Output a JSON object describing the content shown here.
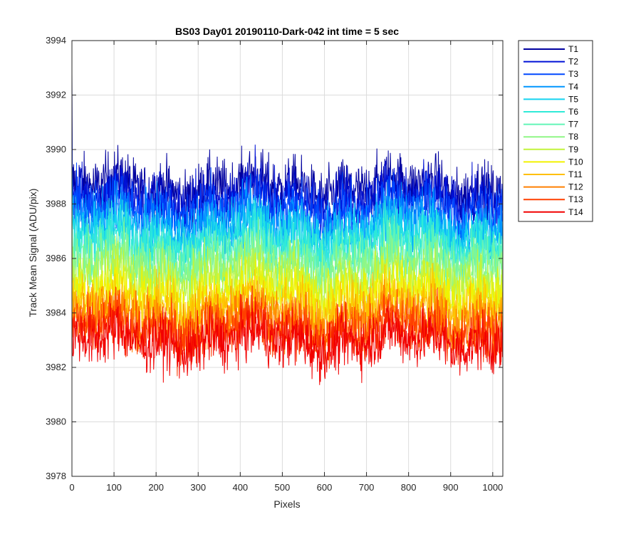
{
  "chart_data": {
    "type": "line",
    "title": "BS03 Day01 20190110-Dark-042 int time = 5 sec",
    "xlabel": "Pixels",
    "ylabel": "Track Mean Signal (ADU/pix)",
    "xlim": [
      0,
      1024
    ],
    "ylim": [
      3978,
      3994
    ],
    "x_ticks": [
      0,
      100,
      200,
      300,
      400,
      500,
      600,
      700,
      800,
      900,
      1000
    ],
    "y_ticks": [
      3978,
      3980,
      3982,
      3984,
      3986,
      3988,
      3990,
      3992,
      3994
    ],
    "grid": true,
    "legend_position": "outside-right",
    "n_points": 1024,
    "series": [
      {
        "name": "T1",
        "color": "#00009f",
        "mean": 3988.6,
        "noise": 0.95
      },
      {
        "name": "T2",
        "color": "#0011d6",
        "mean": 3988.2,
        "noise": 0.95
      },
      {
        "name": "T3",
        "color": "#0048ff",
        "mean": 3987.8,
        "noise": 0.95
      },
      {
        "name": "T4",
        "color": "#0096ff",
        "mean": 3987.3,
        "noise": 0.95
      },
      {
        "name": "T5",
        "color": "#14d3f0",
        "mean": 3986.9,
        "noise": 0.95
      },
      {
        "name": "T6",
        "color": "#30ead8",
        "mean": 3986.5,
        "noise": 0.95
      },
      {
        "name": "T7",
        "color": "#62f5b6",
        "mean": 3986.1,
        "noise": 0.95
      },
      {
        "name": "T8",
        "color": "#8ff786",
        "mean": 3985.7,
        "noise": 0.95
      },
      {
        "name": "T9",
        "color": "#c2f43c",
        "mean": 3985.2,
        "noise": 0.95
      },
      {
        "name": "T10",
        "color": "#f2f200",
        "mean": 3984.7,
        "noise": 0.95
      },
      {
        "name": "T11",
        "color": "#ffbf00",
        "mean": 3984.2,
        "noise": 0.95
      },
      {
        "name": "T12",
        "color": "#ff7f00",
        "mean": 3983.8,
        "noise": 0.95
      },
      {
        "name": "T13",
        "color": "#ff3f00",
        "mean": 3983.4,
        "noise": 0.95
      },
      {
        "name": "T14",
        "color": "#f20000",
        "mean": 3983.0,
        "noise": 0.95
      }
    ]
  }
}
